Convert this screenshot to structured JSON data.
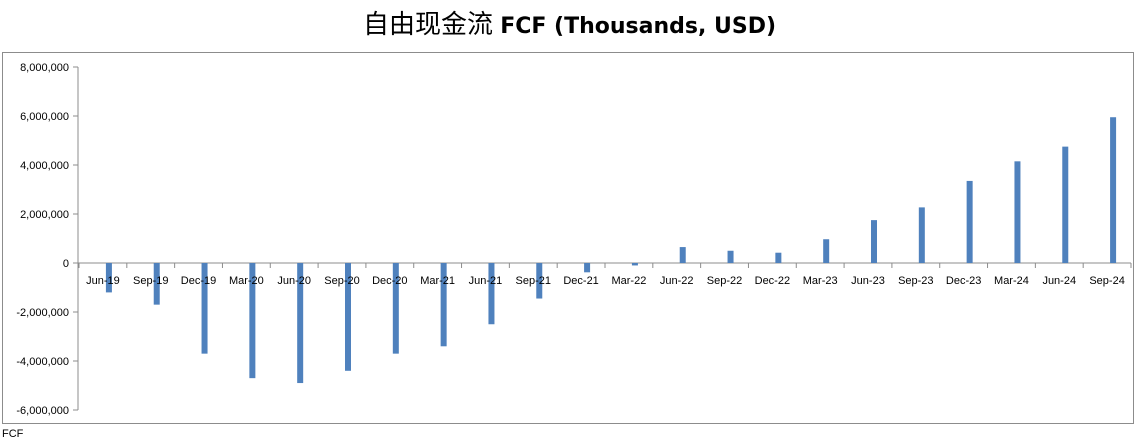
{
  "chart_data": {
    "type": "bar",
    "title_zh": "自由现金流",
    "title_en": "FCF (Thousands, USD)",
    "xlabel": "",
    "ylabel": "",
    "ylim": [
      -6000000,
      8000000
    ],
    "yticks": [
      8000000,
      6000000,
      4000000,
      2000000,
      0,
      -2000000,
      -4000000,
      -6000000
    ],
    "ytick_labels": [
      "8,000,000",
      "6,000,000",
      "4,000,000",
      "2,000,000",
      "0",
      "-2,000,000",
      "-4,000,000",
      "-6,000,000"
    ],
    "grid": false,
    "bar_color": "#4f81bd",
    "categories": [
      "Jun-19",
      "Sep-19",
      "Dec-19",
      "Mar-20",
      "Jun-20",
      "Sep-20",
      "Dec-20",
      "Mar-21",
      "Jun-21",
      "Sep-21",
      "Dec-21",
      "Mar-22",
      "Jun-22",
      "Sep-22",
      "Dec-22",
      "Mar-23",
      "Jun-23",
      "Sep-23",
      "Dec-23",
      "Mar-24",
      "Jun-24",
      "Sep-24"
    ],
    "values": [
      -1200000,
      -1700000,
      -3700000,
      -4700000,
      -4900000,
      -4400000,
      -3700000,
      -3400000,
      -2500000,
      -1450000,
      -380000,
      -100000,
      650000,
      500000,
      420000,
      970000,
      1750000,
      2270000,
      3350000,
      4150000,
      4750000,
      5950000
    ]
  },
  "footer_partial_text": "FCF"
}
